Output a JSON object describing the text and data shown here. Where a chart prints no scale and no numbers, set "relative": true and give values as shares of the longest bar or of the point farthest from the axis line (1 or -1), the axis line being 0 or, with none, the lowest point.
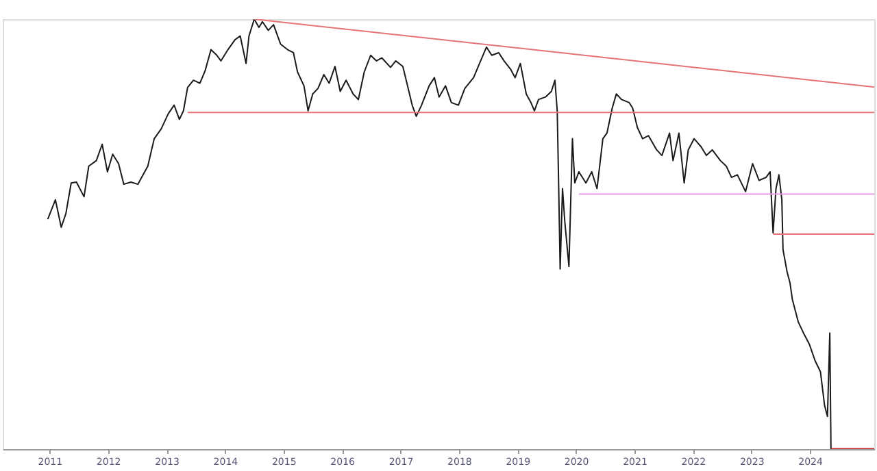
{
  "chart_data": {
    "type": "line",
    "relative": true,
    "grid": false,
    "marker": "none",
    "line_style": "solid",
    "xlim": [
      2010.2,
      2025.1
    ],
    "xticks": [
      2011,
      2012,
      2013,
      2014,
      2015,
      2016,
      2017,
      2018,
      2019,
      2020,
      2021,
      2022,
      2023,
      2024
    ],
    "series": [
      {
        "color": "#1a1a1a",
        "x": [
          2010.97,
          2011.1,
          2011.2,
          2011.28,
          2011.37,
          2011.46,
          2011.59,
          2011.67,
          2011.8,
          2011.9,
          2011.99,
          2012.08,
          2012.18,
          2012.27,
          2012.39,
          2012.51,
          2012.68,
          2012.79,
          2012.91,
          2013.03,
          2013.13,
          2013.22,
          2013.29,
          2013.36,
          2013.46,
          2013.57,
          2013.66,
          2013.76,
          2013.86,
          2013.93,
          2014.05,
          2014.17,
          2014.26,
          2014.36,
          2014.41,
          2014.5,
          2014.58,
          2014.64,
          2014.74,
          2014.83,
          2014.95,
          2015.07,
          2015.17,
          2015.24,
          2015.35,
          2015.42,
          2015.5,
          2015.59,
          2015.69,
          2015.78,
          2015.88,
          2015.97,
          2016.07,
          2016.19,
          2016.28,
          2016.38,
          2016.49,
          2016.59,
          2016.68,
          2016.83,
          2016.92,
          2017.04,
          2017.11,
          2017.2,
          2017.27,
          2017.36,
          2017.49,
          2017.58,
          2017.66,
          2017.77,
          2017.87,
          2017.99,
          2018.1,
          2018.25,
          2018.37,
          2018.47,
          2018.56,
          2018.68,
          2018.77,
          2018.88,
          2018.96,
          2019.05,
          2019.15,
          2019.23,
          2019.29,
          2019.36,
          2019.48,
          2019.58,
          2019.64,
          2019.68,
          2019.7,
          2019.73,
          2019.77,
          2019.81,
          2019.88,
          2019.94,
          2019.98,
          2020.05,
          2020.17,
          2020.27,
          2020.36,
          2020.46,
          2020.53,
          2020.62,
          2020.69,
          2020.78,
          2020.91,
          2020.97,
          2021.05,
          2021.14,
          2021.24,
          2021.38,
          2021.47,
          2021.6,
          2021.66,
          2021.76,
          2021.85,
          2021.92,
          2022.02,
          2022.14,
          2022.23,
          2022.33,
          2022.47,
          2022.57,
          2022.66,
          2022.76,
          2022.9,
          2023.02,
          2023.13,
          2023.25,
          2023.32,
          2023.37,
          2023.42,
          2023.47,
          2023.52,
          2023.54,
          2023.61,
          2023.66,
          2023.7,
          2023.8,
          2023.89,
          2023.99,
          2024.09,
          2024.18,
          2024.25,
          2024.3,
          2024.34,
          2024.36
        ],
        "values": [
          0.535,
          0.58,
          0.516,
          0.548,
          0.619,
          0.621,
          0.587,
          0.658,
          0.671,
          0.709,
          0.645,
          0.686,
          0.664,
          0.616,
          0.621,
          0.616,
          0.658,
          0.722,
          0.745,
          0.78,
          0.8,
          0.767,
          0.787,
          0.841,
          0.858,
          0.851,
          0.88,
          0.929,
          0.916,
          0.903,
          0.929,
          0.952,
          0.961,
          0.897,
          0.961,
          1.0,
          0.981,
          0.994,
          0.974,
          0.987,
          0.942,
          0.929,
          0.922,
          0.877,
          0.845,
          0.787,
          0.826,
          0.839,
          0.871,
          0.851,
          0.89,
          0.832,
          0.858,
          0.826,
          0.813,
          0.877,
          0.916,
          0.903,
          0.91,
          0.888,
          0.903,
          0.89,
          0.851,
          0.8,
          0.774,
          0.8,
          0.845,
          0.864,
          0.819,
          0.845,
          0.806,
          0.8,
          0.839,
          0.864,
          0.903,
          0.935,
          0.916,
          0.922,
          0.903,
          0.884,
          0.864,
          0.897,
          0.826,
          0.806,
          0.787,
          0.813,
          0.819,
          0.832,
          0.858,
          0.787,
          0.645,
          0.419,
          0.606,
          0.528,
          0.425,
          0.722,
          0.619,
          0.645,
          0.619,
          0.645,
          0.606,
          0.722,
          0.735,
          0.793,
          0.826,
          0.813,
          0.806,
          0.793,
          0.748,
          0.722,
          0.729,
          0.696,
          0.683,
          0.735,
          0.671,
          0.735,
          0.619,
          0.696,
          0.722,
          0.703,
          0.683,
          0.696,
          0.671,
          0.658,
          0.632,
          0.638,
          0.599,
          0.664,
          0.625,
          0.632,
          0.645,
          0.503,
          0.606,
          0.638,
          0.58,
          0.464,
          0.412,
          0.386,
          0.348,
          0.296,
          0.27,
          0.244,
          0.205,
          0.18,
          0.102,
          0.076,
          0.27,
          0.0
        ]
      },
      {
        "color": "#e57373",
        "x": [
          2014.5,
          2025.1
        ],
        "values": [
          1.0,
          0.842
        ]
      },
      {
        "color": "#e57373",
        "x": [
          2013.36,
          2025.1
        ],
        "values": [
          0.783,
          0.783
        ]
      },
      {
        "color": "#e39be3",
        "x": [
          2020.05,
          2025.1
        ],
        "values": [
          0.593,
          0.593
        ]
      },
      {
        "color": "#e57373",
        "x": [
          2023.37,
          2025.1
        ],
        "values": [
          0.5,
          0.5
        ]
      },
      {
        "color": "#c62828",
        "x": [
          2024.36,
          2025.1
        ],
        "values": [
          0.0,
          0.0
        ]
      }
    ]
  }
}
